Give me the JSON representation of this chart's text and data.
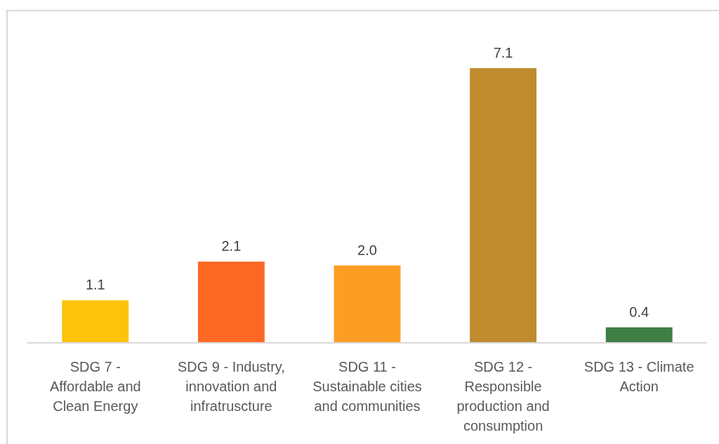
{
  "chart_data": {
    "type": "bar",
    "categories": [
      "SDG 7 - Affordable and Clean Energy",
      "SDG 9 - Industry, innovation and infratruscture",
      "SDG 11 - Sustainable cities and communities",
      "SDG 12 - Responsible production and consumption",
      "SDG 13 - Climate Action"
    ],
    "values": [
      1.1,
      2.1,
      2.0,
      7.1,
      0.4
    ],
    "colors": [
      "#fcc30b",
      "#fd6925",
      "#fd9d24",
      "#bf8b2e",
      "#3f7e44"
    ],
    "value_labels": [
      "1.1",
      "2.1",
      "2.0",
      "7.1",
      "0.4"
    ]
  }
}
